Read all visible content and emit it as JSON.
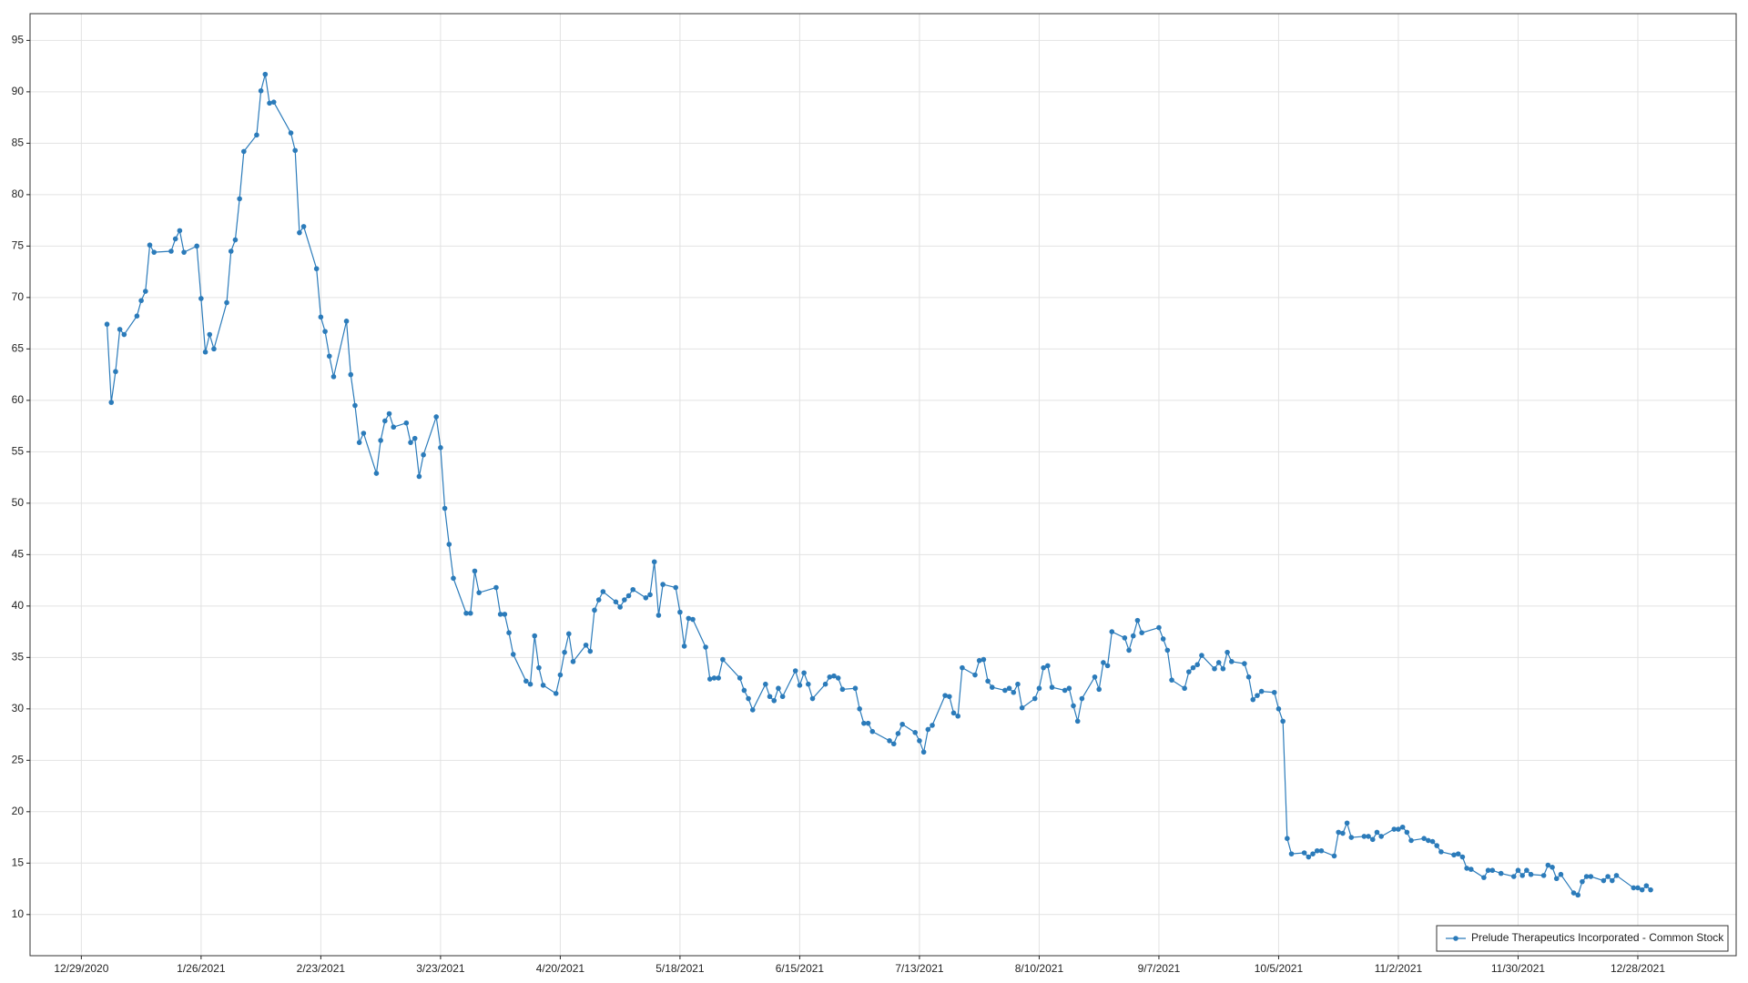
{
  "chart_data": {
    "type": "line",
    "series": [
      {
        "name": "Prelude Therapeutics Incorporated - Common Stock",
        "color": "#2b7bba",
        "values": [
          67.4,
          59.8,
          62.8,
          66.9,
          66.4,
          68.2,
          69.7,
          70.6,
          75.1,
          74.4,
          74.5,
          75.7,
          76.5,
          74.4,
          75.0,
          69.9,
          64.7,
          66.4,
          65.0,
          69.5,
          74.5,
          75.6,
          79.6,
          84.2,
          85.8,
          90.1,
          91.7,
          88.9,
          89.0,
          86.0,
          84.3,
          76.3,
          76.9,
          72.8,
          68.1,
          66.7,
          64.3,
          62.3,
          67.7,
          62.5,
          59.5,
          55.9,
          56.8,
          52.9,
          56.1,
          58.0,
          58.7,
          57.4,
          57.8,
          55.9,
          56.3,
          52.6,
          54.7,
          58.4,
          55.4,
          49.5,
          46.0,
          42.7,
          39.3,
          39.3,
          43.4,
          41.3,
          41.8,
          39.2,
          39.2,
          37.4,
          35.3,
          32.7,
          32.4,
          37.1,
          34.0,
          32.3,
          31.5,
          33.3,
          35.5,
          37.3,
          34.6,
          36.2,
          35.6,
          39.6,
          40.6,
          41.4,
          40.4,
          39.9,
          40.6,
          41.0,
          41.6,
          40.8,
          41.1,
          44.3,
          39.1,
          42.1,
          41.8,
          39.4,
          36.1,
          38.8,
          38.7,
          36.0,
          32.9,
          33.0,
          33.0,
          34.8,
          33.0,
          31.8,
          31.0,
          29.9,
          32.4,
          31.2,
          30.8,
          32.0,
          31.2,
          33.7,
          32.3,
          33.5,
          32.4,
          31.0,
          32.4,
          33.1,
          33.2,
          33.0,
          31.9,
          32.0,
          30.0,
          28.6,
          28.6,
          27.8,
          26.9,
          26.6,
          27.6,
          28.5,
          27.7,
          26.9,
          25.8,
          28.0,
          28.4,
          31.3,
          31.2,
          29.6,
          29.3,
          34.0,
          33.3,
          34.7,
          34.8,
          32.7,
          32.1,
          31.8,
          32.0,
          31.6,
          32.4,
          30.1,
          31.0,
          32.0,
          34.0,
          34.2,
          32.1,
          31.8,
          32.0,
          30.3,
          28.8,
          31.0,
          33.1,
          31.9,
          34.5,
          34.2,
          37.5,
          36.9,
          35.7,
          37.1,
          38.6,
          37.4,
          37.9,
          36.8,
          35.7,
          32.8,
          32.0,
          33.6,
          34.0,
          34.3,
          35.2,
          33.9,
          34.5,
          33.9,
          35.5,
          34.6,
          34.4,
          33.1,
          30.9,
          31.3,
          31.7,
          31.6,
          30.0,
          28.8,
          17.4,
          15.9,
          16.0,
          15.6,
          15.9,
          16.2,
          16.2,
          15.7,
          18.0,
          17.9,
          18.9,
          17.5,
          17.6,
          17.6,
          17.3,
          18.0,
          17.6,
          18.3,
          18.3,
          18.5,
          18.0,
          17.2,
          17.4,
          17.2,
          17.1,
          16.7,
          16.1,
          15.8,
          15.9,
          15.6,
          14.5,
          14.4,
          13.6,
          14.3,
          14.3,
          14.0,
          13.7,
          14.3,
          13.8,
          14.3,
          13.9,
          13.8,
          14.8,
          14.6,
          13.5,
          13.9,
          12.1,
          11.9,
          13.2,
          13.7,
          13.7,
          13.3,
          13.7,
          13.3,
          13.8,
          12.6,
          12.6,
          12.4,
          12.8,
          12.4
        ]
      }
    ],
    "x": [
      "1/4/2021",
      "1/5/2021",
      "1/6/2021",
      "1/7/2021",
      "1/8/2021",
      "1/11/2021",
      "1/12/2021",
      "1/13/2021",
      "1/14/2021",
      "1/15/2021",
      "1/19/2021",
      "1/20/2021",
      "1/21/2021",
      "1/22/2021",
      "1/25/2021",
      "1/26/2021",
      "1/27/2021",
      "1/28/2021",
      "1/29/2021",
      "2/1/2021",
      "2/2/2021",
      "2/3/2021",
      "2/4/2021",
      "2/5/2021",
      "2/8/2021",
      "2/9/2021",
      "2/10/2021",
      "2/11/2021",
      "2/12/2021",
      "2/16/2021",
      "2/17/2021",
      "2/18/2021",
      "2/19/2021",
      "2/22/2021",
      "2/23/2021",
      "2/24/2021",
      "2/25/2021",
      "2/26/2021",
      "3/1/2021",
      "3/2/2021",
      "3/3/2021",
      "3/4/2021",
      "3/5/2021",
      "3/8/2021",
      "3/9/2021",
      "3/10/2021",
      "3/11/2021",
      "3/12/2021",
      "3/15/2021",
      "3/16/2021",
      "3/17/2021",
      "3/18/2021",
      "3/19/2021",
      "3/22/2021",
      "3/23/2021",
      "3/24/2021",
      "3/25/2021",
      "3/26/2021",
      "3/29/2021",
      "3/30/2021",
      "3/31/2021",
      "4/1/2021",
      "4/5/2021",
      "4/6/2021",
      "4/7/2021",
      "4/8/2021",
      "4/9/2021",
      "4/12/2021",
      "4/13/2021",
      "4/14/2021",
      "4/15/2021",
      "4/16/2021",
      "4/19/2021",
      "4/20/2021",
      "4/21/2021",
      "4/22/2021",
      "4/23/2021",
      "4/26/2021",
      "4/27/2021",
      "4/28/2021",
      "4/29/2021",
      "4/30/2021",
      "5/3/2021",
      "5/4/2021",
      "5/5/2021",
      "5/6/2021",
      "5/7/2021",
      "5/10/2021",
      "5/11/2021",
      "5/12/2021",
      "5/13/2021",
      "5/14/2021",
      "5/17/2021",
      "5/18/2021",
      "5/19/2021",
      "5/20/2021",
      "5/21/2021",
      "5/24/2021",
      "5/25/2021",
      "5/26/2021",
      "5/27/2021",
      "5/28/2021",
      "6/1/2021",
      "6/2/2021",
      "6/3/2021",
      "6/4/2021",
      "6/7/2021",
      "6/8/2021",
      "6/9/2021",
      "6/10/2021",
      "6/11/2021",
      "6/14/2021",
      "6/15/2021",
      "6/16/2021",
      "6/17/2021",
      "6/18/2021",
      "6/21/2021",
      "6/22/2021",
      "6/23/2021",
      "6/24/2021",
      "6/25/2021",
      "6/28/2021",
      "6/29/2021",
      "6/30/2021",
      "7/1/2021",
      "7/2/2021",
      "7/6/2021",
      "7/7/2021",
      "7/8/2021",
      "7/9/2021",
      "7/12/2021",
      "7/13/2021",
      "7/14/2021",
      "7/15/2021",
      "7/16/2021",
      "7/19/2021",
      "7/20/2021",
      "7/21/2021",
      "7/22/2021",
      "7/23/2021",
      "7/26/2021",
      "7/27/2021",
      "7/28/2021",
      "7/29/2021",
      "7/30/2021",
      "8/2/2021",
      "8/3/2021",
      "8/4/2021",
      "8/5/2021",
      "8/6/2021",
      "8/9/2021",
      "8/10/2021",
      "8/11/2021",
      "8/12/2021",
      "8/13/2021",
      "8/16/2021",
      "8/17/2021",
      "8/18/2021",
      "8/19/2021",
      "8/20/2021",
      "8/23/2021",
      "8/24/2021",
      "8/25/2021",
      "8/26/2021",
      "8/27/2021",
      "8/30/2021",
      "8/31/2021",
      "9/1/2021",
      "9/2/2021",
      "9/3/2021",
      "9/7/2021",
      "9/8/2021",
      "9/9/2021",
      "9/10/2021",
      "9/13/2021",
      "9/14/2021",
      "9/15/2021",
      "9/16/2021",
      "9/17/2021",
      "9/20/2021",
      "9/21/2021",
      "9/22/2021",
      "9/23/2021",
      "9/24/2021",
      "9/27/2021",
      "9/28/2021",
      "9/29/2021",
      "9/30/2021",
      "10/1/2021",
      "10/4/2021",
      "10/5/2021",
      "10/6/2021",
      "10/7/2021",
      "10/8/2021",
      "10/11/2021",
      "10/12/2021",
      "10/13/2021",
      "10/14/2021",
      "10/15/2021",
      "10/18/2021",
      "10/19/2021",
      "10/20/2021",
      "10/21/2021",
      "10/22/2021",
      "10/25/2021",
      "10/26/2021",
      "10/27/2021",
      "10/28/2021",
      "10/29/2021",
      "11/1/2021",
      "11/2/2021",
      "11/3/2021",
      "11/4/2021",
      "11/5/2021",
      "11/8/2021",
      "11/9/2021",
      "11/10/2021",
      "11/11/2021",
      "11/12/2021",
      "11/15/2021",
      "11/16/2021",
      "11/17/2021",
      "11/18/2021",
      "11/19/2021",
      "11/22/2021",
      "11/23/2021",
      "11/24/2021",
      "11/26/2021",
      "11/29/2021",
      "11/30/2021",
      "12/1/2021",
      "12/2/2021",
      "12/3/2021",
      "12/6/2021",
      "12/7/2021",
      "12/8/2021",
      "12/9/2021",
      "12/10/2021",
      "12/13/2021",
      "12/14/2021",
      "12/15/2021",
      "12/16/2021",
      "12/17/2021",
      "12/20/2021",
      "12/21/2021",
      "12/22/2021",
      "12/23/2021",
      "12/27/2021",
      "12/28/2021",
      "12/29/2021",
      "12/30/2021",
      "12/31/2021"
    ],
    "xlim": [
      "12/17/2020",
      "1/20/2022"
    ],
    "xticks": [
      "12/29/2020",
      "1/26/2021",
      "2/23/2021",
      "3/23/2021",
      "4/20/2021",
      "5/18/2021",
      "6/15/2021",
      "7/13/2021",
      "8/10/2021",
      "9/7/2021",
      "10/5/2021",
      "11/2/2021",
      "11/30/2021",
      "12/28/2021"
    ],
    "ylim": [
      6,
      97.6
    ],
    "yticks": [
      10,
      15,
      20,
      25,
      30,
      35,
      40,
      45,
      50,
      55,
      60,
      65,
      70,
      75,
      80,
      85,
      90,
      95
    ],
    "grid": true,
    "markers": true,
    "legend_position": "lower right"
  }
}
